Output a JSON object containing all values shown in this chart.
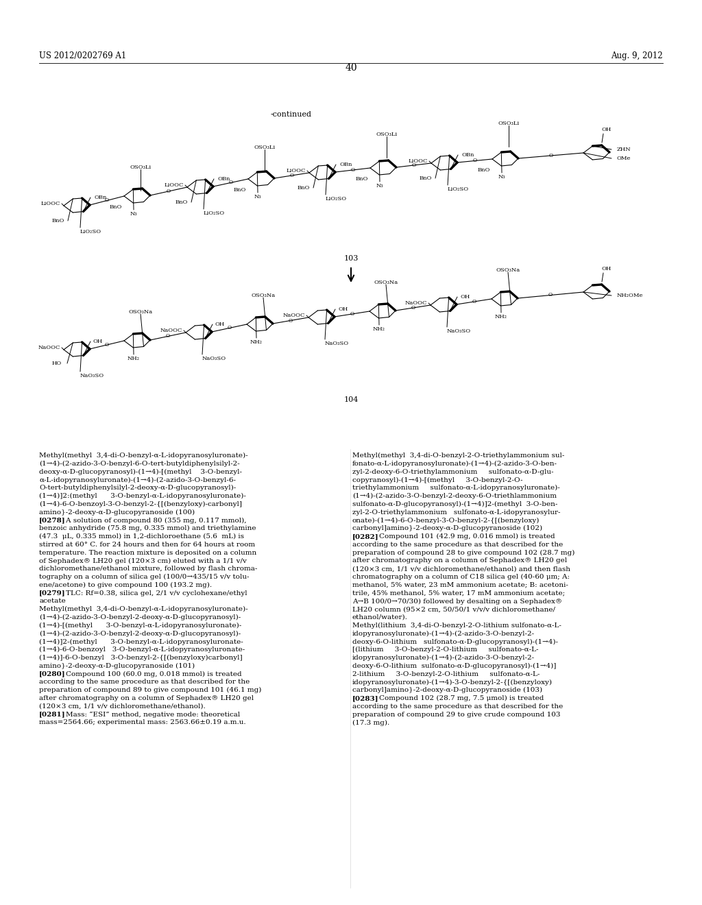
{
  "page_number": "40",
  "patent_number": "US 2012/0202769 A1",
  "date": "Aug. 9, 2012",
  "continued_label": "-continued",
  "compound_103_label": "103",
  "compound_104_label": "104",
  "bg_color": "#ffffff",
  "text_color": "#000000",
  "left_col_lines": [
    "Methyl(methyl  3,4-di-O-benzyl-α-L-idopyranosyluronate)-",
    "(1→4)-(2-azido-3-O-benzyl-6-O-tert-butyldiphenylsilyl-2-",
    "deoxy-α-D-glucopyranosyl)-(1→4)-[(methyl    3-O-benzyl-",
    "α-L-idopyranosyluronate)-(1→4)-(2-azido-3-O-benzyl-6-",
    "O-tert-butyldiphenylsilyl-2-deoxy-α-D-glucopyranosyl)-",
    "(1→4)]2:(methyl      3-O-benzyl-α-L-idopyranosyluronate)-",
    "(1→4)-6-O-benzoyl-3-O-benzyl-2-{[(benzyloxy)-carbonyl]",
    "amino}-2-deoxy-α-D-glucopyranoside (100)",
    "[0278]    A solution of compound 80 (355 mg, 0.117 mmol),",
    "benzoic anhydride (75.8 mg, 0.335 mmol) and triethylamine",
    "(47.3  μL, 0.335 mmol) in 1,2-dichloroethane (5.6  mL) is",
    "stirred at 60° C. for 24 hours and then for 64 hours at room",
    "temperature. The reaction mixture is deposited on a column",
    "of Sephadex® LH20 gel (120×3 cm) eluted with a 1/1 v/v",
    "dichloromethane/ethanol mixture, followed by flash chroma-",
    "tography on a column of silica gel (100/0→435/15 v/v tolu-",
    "ene/acetone) to give compound 100 (193.2 mg).",
    "[0279]    TLC: Rf=0.38, silica gel, 2/1 v/v cyclohexane/ethyl",
    "acetate",
    "Methyl(methyl  3,4-di-O-benzyl-α-L-idopyranosyluronate)-",
    "(1→4)-(2-azido-3-O-benzyl-2-deoxy-α-D-glucopyranosyl)-",
    "(1→4)-[(methyl      3-O-benzyl-α-L-idopyranosyluronate)-",
    "(1→4)-(2-azido-3-O-benzyl-2-deoxy-α-D-glucopyranosyl)-",
    "(1→4)]2-(methyl      3-O-benzyl-α-L-idopyranosyluronate-",
    "(1→4)-6-O-benzoyl   3-O-benzyl-α-L-idopyranosyluronate-",
    "(1→4)]-6-O-benzyl   3-O-benzyl-2-{[(benzyloxy)carbonyl]",
    "amino}-2-deoxy-α-D-glucopyranoside (101)",
    "[0280]    Compound 100 (60.0 mg, 0.018 mmol) is treated",
    "according to the same procedure as that described for the",
    "preparation of compound 89 to give compound 101 (46.1 mg)",
    "after chromatography on a column of Sephadex® LH20 gel",
    "(120×3 cm, 1/1 v/v dichloromethane/ethanol).",
    "[0281]    Mass: “ESI” method, negative mode: theoretical",
    "mass=2564.66; experimental mass: 2563.66±0.19 a.m.u."
  ],
  "right_col_lines": [
    "Methyl(methyl  3,4-di-O-benzyl-2-O-triethylammonium sul-",
    "fonato-α-L-idopyranosyluronate)-(1→4)-(2-azido-3-O-ben-",
    "zyl-2-deoxy-6-O-triethylammonium     sulfonato-α-D-glu-",
    "copyranosyl)-(1→4)-[(methyl     3-O-benzyl-2-O-",
    "triethylammonium     sulfonato-α-L-idopyranosyluronate)-",
    "(1→4)-(2-azido-3-O-benzyl-2-deoxy-6-O-triethlammonium",
    "sulfonato-α-D-glucopyranosyl)-(1→4)]2-(methyl  3-O-ben-",
    "zyl-2-O-triethylammonium   sulfonato-α-L-idopyranosylur-",
    "onate)-(1→4)-6-O-benzyl-3-O-benzyl-2-{[(benzyloxy)",
    "carbonyl]amino}-2-deoxy-α-D-glucopyranoside (102)",
    "[0282]    Compound 101 (42.9 mg, 0.016 mmol) is treated",
    "according to the same procedure as that described for the",
    "preparation of compound 28 to give compound 102 (28.7 mg)",
    "after chromatography on a column of Sephadex® LH20 gel",
    "(120×3 cm, 1/1 v/v dichloromethane/ethanol) and then flash",
    "chromatography on a column of C18 silica gel (40-60 μm; A:",
    "methanol, 5% water, 23 mM ammonium acetate; B: acetoni-",
    "trile, 45% methanol, 5% water, 17 mM ammonium acetate;",
    "A→B 100/0→70/30) followed by desalting on a Sephadex®",
    "LH20 column (95×2 cm, 50/50/1 v/v/v dichloromethane/",
    "ethanol/water).",
    "Methyl(lithium  3,4-di-O-benzyl-2-O-lithium sulfonato-α-L-",
    "idopyranosyluronate)-(1→4)-(2-azido-3-O-benzyl-2-",
    "deoxy-6-O-lithium   sulfonato-α-D-glucopyranosyl)-(1→4)-",
    "[(lithium     3-O-benzyl-2-O-lithium     sulfonato-α-L-",
    "idopyranosyluronate)-(1→4)-(2-azido-3-O-benzyl-2-",
    "deoxy-6-O-lithium  sulfonato-α-D-glucopyranosyl)-(1→4)]",
    "2-lithium     3-O-benzyl-2-O-lithium     sulfonato-α-L-",
    "idopyranosyluronate)-(1→4)-3-O-benzyl-2-{[(benzyloxy)",
    "carbonyl]amino}-2-deoxy-α-D-glucopyranoside (103)",
    "[0283]    Compound 102 (28.7 mg, 7.5 μmol) is treated",
    "according to the same procedure as that described for the",
    "preparation of compound 29 to give crude compound 103",
    "(17.3 mg)."
  ]
}
